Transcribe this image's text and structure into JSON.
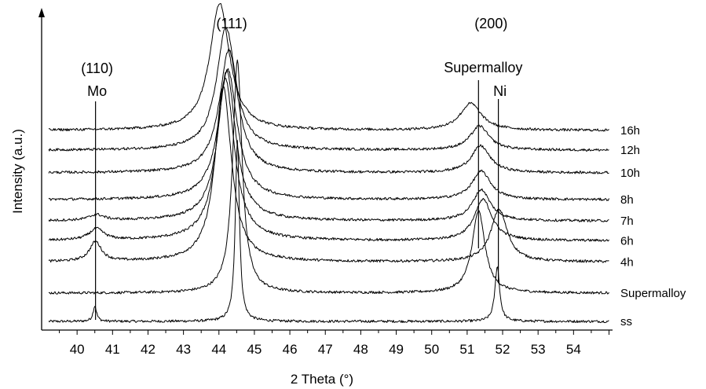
{
  "chart_data": {
    "type": "line",
    "title": "",
    "xlabel": "2 Theta (°)",
    "ylabel": "Intensity (a.u.)",
    "xlim": [
      39.0,
      55.1
    ],
    "x_ticks": [
      40,
      41,
      42,
      43,
      44,
      45,
      46,
      47,
      48,
      49,
      50,
      51,
      52,
      53,
      54
    ],
    "grid": false,
    "legend": "none",
    "line_color": "#000000",
    "series": [
      {
        "name": "ss",
        "baseline": 0.0,
        "peaks": [
          {
            "x": 40.5,
            "h": 0.55,
            "w": 0.06
          },
          {
            "x": 44.52,
            "h": 6.4,
            "w": 0.07
          },
          {
            "x": 51.85,
            "h": 1.95,
            "w": 0.08
          }
        ]
      },
      {
        "name": "Supermalloy",
        "baseline": 1.0,
        "peaks": [
          {
            "x": 44.52,
            "h": 8.2,
            "w": 0.16
          },
          {
            "x": 51.32,
            "h": 2.9,
            "w": 0.22
          }
        ]
      },
      {
        "name": "4h",
        "baseline": 2.1,
        "peaks": [
          {
            "x": 40.52,
            "h": 0.7,
            "w": 0.2
          },
          {
            "x": 44.12,
            "h": 6.2,
            "w": 0.28
          },
          {
            "x": 51.9,
            "h": 1.85,
            "w": 0.28
          }
        ]
      },
      {
        "name": "6h",
        "baseline": 2.85,
        "peaks": [
          {
            "x": 40.55,
            "h": 0.4,
            "w": 0.25
          },
          {
            "x": 44.18,
            "h": 5.75,
            "w": 0.3
          },
          {
            "x": 51.45,
            "h": 1.45,
            "w": 0.3
          }
        ]
      },
      {
        "name": "7h",
        "baseline": 3.55,
        "peaks": [
          {
            "x": 40.55,
            "h": 0.2,
            "w": 0.25
          },
          {
            "x": 44.22,
            "h": 5.3,
            "w": 0.3
          },
          {
            "x": 51.4,
            "h": 1.1,
            "w": 0.3
          }
        ]
      },
      {
        "name": "8h",
        "baseline": 4.3,
        "peaks": [
          {
            "x": 44.25,
            "h": 4.6,
            "w": 0.32
          },
          {
            "x": 51.4,
            "h": 1.0,
            "w": 0.32
          }
        ]
      },
      {
        "name": "10h",
        "baseline": 5.25,
        "peaks": [
          {
            "x": 44.28,
            "h": 4.35,
            "w": 0.32
          },
          {
            "x": 51.38,
            "h": 0.95,
            "w": 0.32
          }
        ]
      },
      {
        "name": "12h",
        "baseline": 6.05,
        "peaks": [
          {
            "x": 44.2,
            "h": 4.35,
            "w": 0.32
          },
          {
            "x": 51.35,
            "h": 0.85,
            "w": 0.32
          }
        ]
      },
      {
        "name": "16h",
        "baseline": 6.75,
        "peaks": [
          {
            "x": 44.02,
            "h": 4.5,
            "w": 0.34
          },
          {
            "x": 51.1,
            "h": 0.95,
            "w": 0.36
          }
        ]
      }
    ],
    "annotations": [
      {
        "hkl": "(110)",
        "name": "Mo",
        "x": 40.52
      },
      {
        "hkl": "(111)",
        "name": "",
        "x": 44.05
      },
      {
        "hkl": "(200)",
        "name": "Supermalloy",
        "x": 51.32
      },
      {
        "hkl": "",
        "name": "Ni",
        "x": 51.88
      }
    ]
  }
}
